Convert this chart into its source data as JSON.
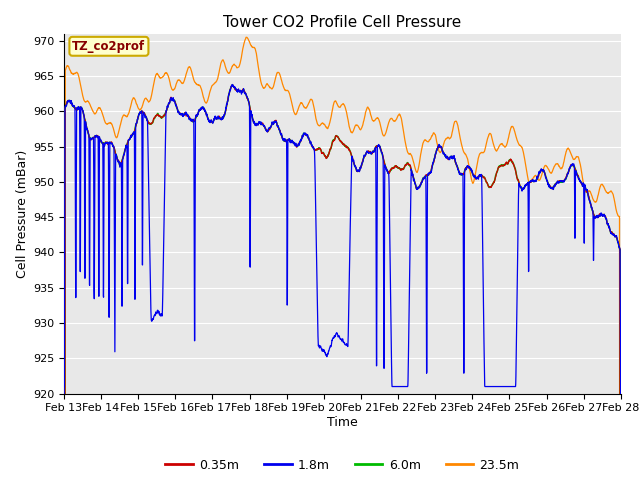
{
  "title": "Tower CO2 Profile Cell Pressure",
  "xlabel": "Time",
  "ylabel": "Cell Pressure (mBar)",
  "ylim": [
    920,
    971
  ],
  "yticks": [
    920,
    925,
    930,
    935,
    940,
    945,
    950,
    955,
    960,
    965,
    970
  ],
  "date_labels": [
    "Feb 13",
    "Feb 14",
    "Feb 15",
    "Feb 16",
    "Feb 17",
    "Feb 18",
    "Feb 19",
    "Feb 20",
    "Feb 21",
    "Feb 22",
    "Feb 23",
    "Feb 24",
    "Feb 25",
    "Feb 26",
    "Feb 27",
    "Feb 28"
  ],
  "legend_entries": [
    "0.35m",
    "1.8m",
    "6.0m",
    "23.5m"
  ],
  "line_colors": [
    "#cc0000",
    "#0000ee",
    "#00bb00",
    "#ff8800"
  ],
  "annotation_text": "TZ_co2prof",
  "annotation_color": "#880000",
  "annotation_bg": "#ffffcc",
  "annotation_border": "#ccaa00",
  "plot_bg": "#e8e8e8",
  "grid_color": "#ffffff",
  "title_fontsize": 11,
  "axis_fontsize": 9,
  "tick_fontsize": 8
}
